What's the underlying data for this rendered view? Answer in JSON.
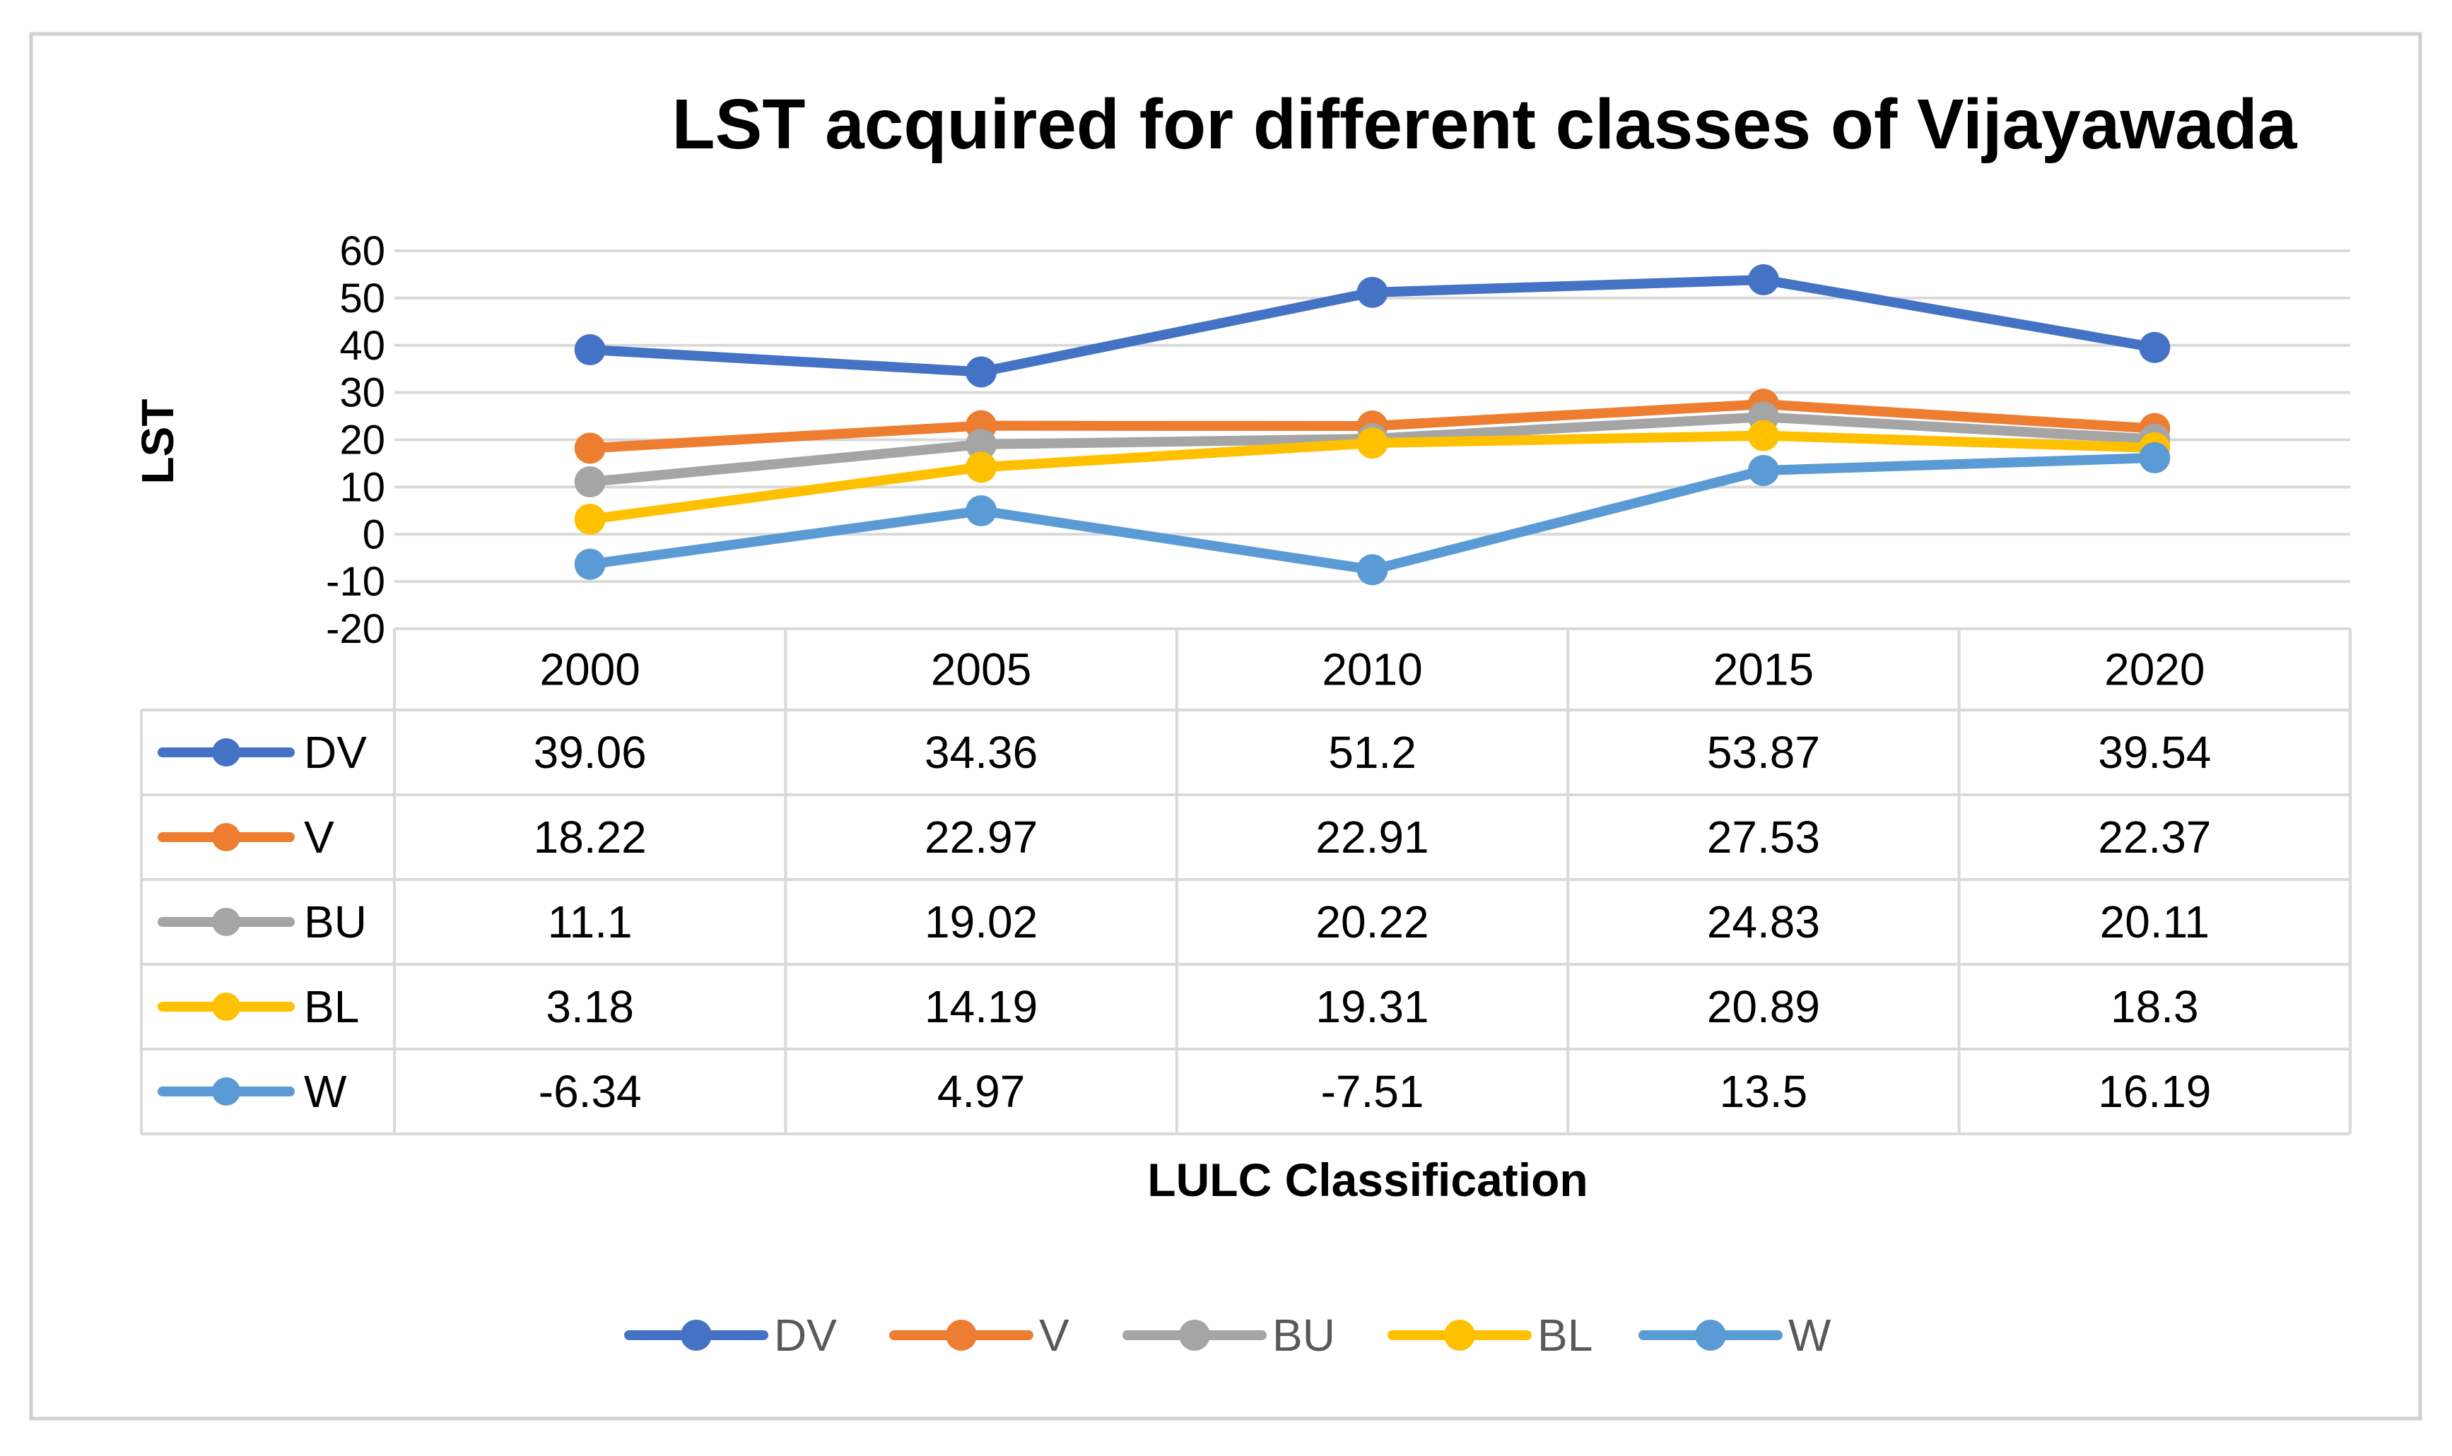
{
  "chart_data": {
    "type": "line",
    "title": "LST acquired for different classes of Vijayawada",
    "xlabel": "LULC Classification",
    "ylabel": "LST",
    "categories": [
      "2000",
      "2005",
      "2010",
      "2015",
      "2020"
    ],
    "ylim": [
      -20,
      60
    ],
    "yticks": [
      60,
      50,
      40,
      30,
      20,
      10,
      0,
      -10,
      -20
    ],
    "grid": true,
    "legend_position": "bottom",
    "data_table": true,
    "series": [
      {
        "name": "DV",
        "color": "#4472C4",
        "values": [
          39.06,
          34.36,
          51.2,
          53.87,
          39.54
        ]
      },
      {
        "name": "V",
        "color": "#ED7D31",
        "values": [
          18.22,
          22.97,
          22.91,
          27.53,
          22.37
        ]
      },
      {
        "name": "BU",
        "color": "#A5A5A5",
        "values": [
          11.1,
          19.02,
          20.22,
          24.83,
          20.11
        ]
      },
      {
        "name": "BL",
        "color": "#FFC000",
        "values": [
          3.18,
          14.19,
          19.31,
          20.89,
          18.3
        ]
      },
      {
        "name": "W",
        "color": "#5B9BD5",
        "values": [
          -6.34,
          4.97,
          -7.51,
          13.5,
          16.19
        ]
      }
    ]
  }
}
